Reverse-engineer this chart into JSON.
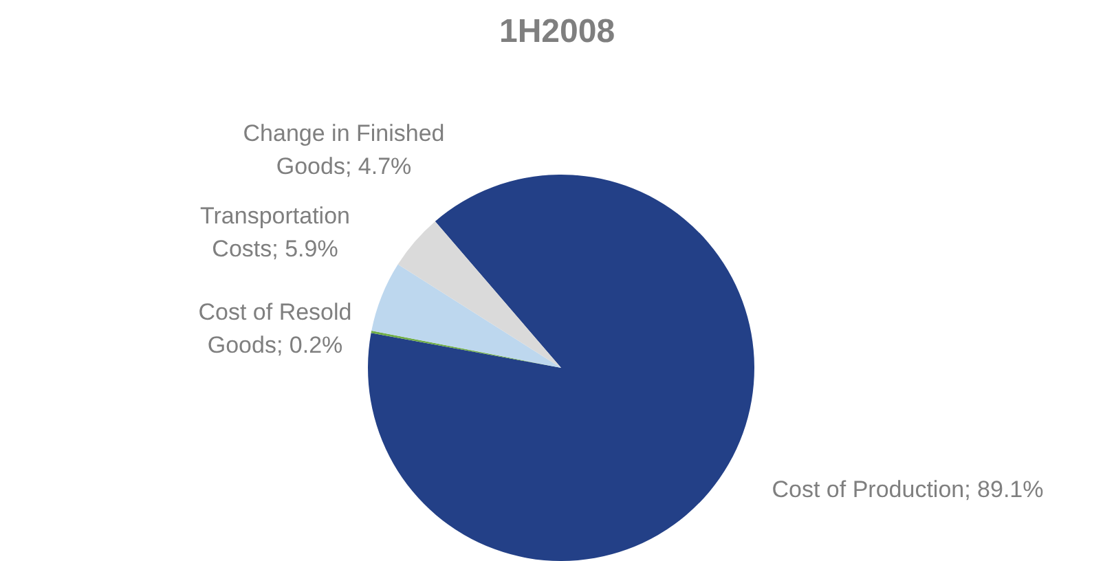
{
  "chart_data": {
    "type": "pie",
    "title": "1H2008",
    "categories": [
      "Cost of Production",
      "Cost of Resold Goods",
      "Transportation Costs",
      "Change in Finished Goods"
    ],
    "values": [
      89.1,
      0.2,
      5.9,
      4.7
    ],
    "value_labels": [
      "89.1%",
      "0.2%",
      "5.9%",
      "4.7%"
    ],
    "colors": [
      "#234087",
      "#70ad47",
      "#bdd7ee",
      "#dadada"
    ],
    "legend": false
  }
}
